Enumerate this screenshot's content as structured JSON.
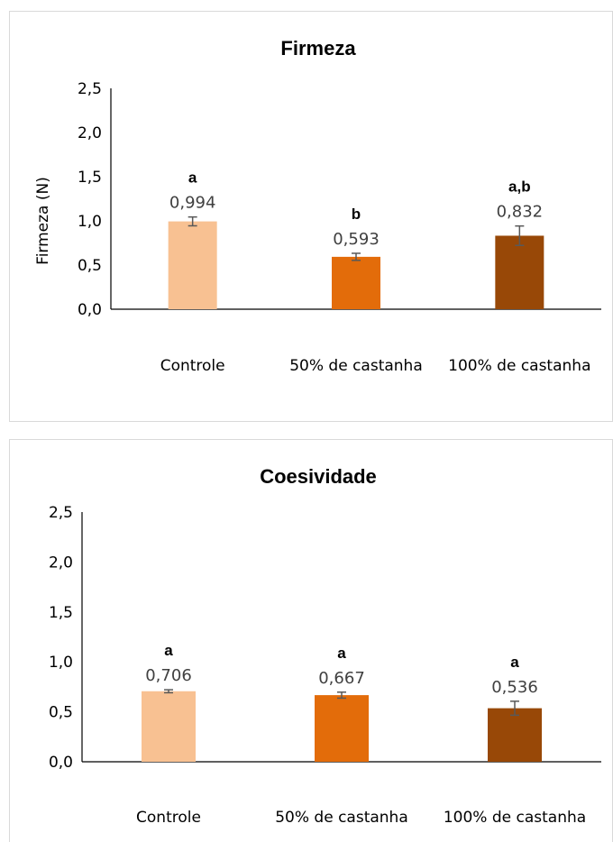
{
  "chart_data": [
    {
      "type": "bar",
      "title": "Firmeza",
      "xlabel": "",
      "ylabel": "Firmeza (N)",
      "ylim": [
        0,
        2.5
      ],
      "yticks": [
        "0,0",
        "0,5",
        "1,0",
        "1,5",
        "2,0",
        "2,5"
      ],
      "categories": [
        "Controle",
        "50% de castanha",
        "100% de castanha"
      ],
      "values": [
        0.994,
        0.593,
        0.832
      ],
      "value_labels": [
        "0,994",
        "0,593",
        "0,832"
      ],
      "errors": [
        0.05,
        0.04,
        0.11
      ],
      "significance": [
        "a",
        "b",
        "a,b"
      ],
      "colors": [
        "#f8c192",
        "#e36c0a",
        "#984807"
      ],
      "grid": false,
      "legend": "none"
    },
    {
      "type": "bar",
      "title": "Coesividade",
      "xlabel": "",
      "ylabel": "",
      "ylim": [
        0,
        2.5
      ],
      "yticks": [
        "0,0",
        "0,5",
        "1,0",
        "1,5",
        "2,0",
        "2,5"
      ],
      "categories": [
        "Controle",
        "50% de castanha",
        "100% de castanha"
      ],
      "values": [
        0.706,
        0.667,
        0.536
      ],
      "value_labels": [
        "0,706",
        "0,667",
        "0,536"
      ],
      "errors": [
        0.015,
        0.03,
        0.07
      ],
      "significance": [
        "a",
        "a",
        "a"
      ],
      "colors": [
        "#f8c192",
        "#e36c0a",
        "#984807"
      ],
      "grid": false,
      "legend": "none"
    }
  ]
}
